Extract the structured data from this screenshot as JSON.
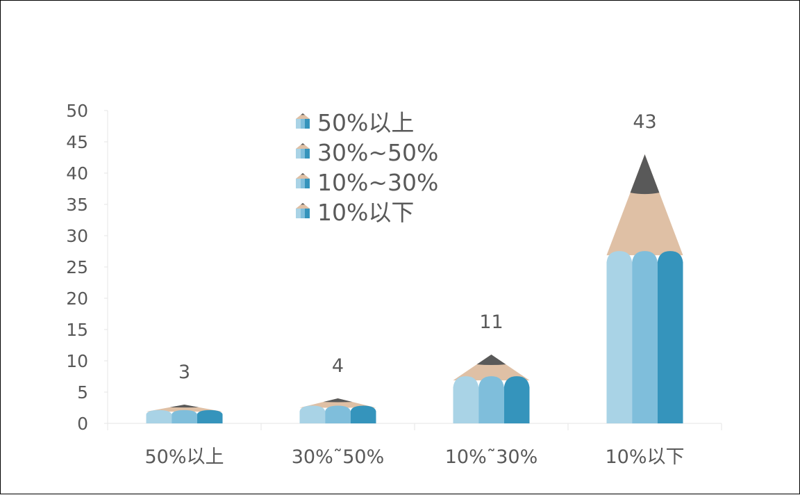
{
  "chart_data": {
    "type": "bar",
    "categories": [
      "50%以上",
      "30%~50%",
      "10%~30%",
      "10%以下"
    ],
    "category_labels": [
      "50%以上",
      "30%˜50%",
      "10%˜30%",
      "10%以下"
    ],
    "values": [
      3,
      4,
      11,
      43
    ],
    "data_labels": [
      "3",
      "4",
      "11",
      "43"
    ],
    "legend": [
      "50%以上",
      "30%~50%",
      "10%~30%",
      "10%以下"
    ],
    "legend_position": "top-center",
    "ylim": [
      0,
      50
    ],
    "yticks": [
      0,
      5,
      10,
      15,
      20,
      25,
      30,
      35,
      40,
      45,
      50
    ],
    "grid": false,
    "bar_style": "pencil",
    "colors": {
      "light_blue": "#A9D3E6",
      "mid_blue": "#7FBEDB",
      "dark_blue": "#3594BC",
      "wood": "#DFC0A5",
      "lead": "#595959",
      "axis": "#E6E6E6",
      "text": "#595959"
    }
  }
}
